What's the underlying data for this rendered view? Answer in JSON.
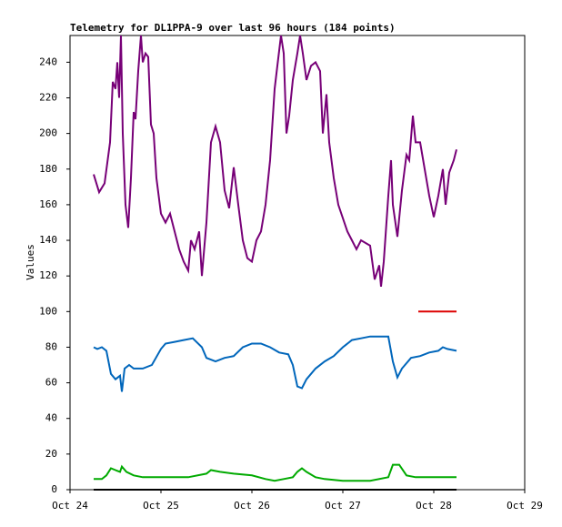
{
  "chart_data": {
    "type": "line",
    "title": "Telemetry for DL1PPA-9 over last 96 hours (184 points)",
    "y_label": "Values",
    "xlim": [
      24,
      29
    ],
    "xticks": [
      {
        "value": 24,
        "label": "Oct 24"
      },
      {
        "value": 25,
        "label": "Oct 25"
      },
      {
        "value": 26,
        "label": "Oct 26"
      },
      {
        "value": 27,
        "label": "Oct 27"
      },
      {
        "value": 28,
        "label": "Oct 28"
      },
      {
        "value": 29,
        "label": "Oct 29"
      }
    ],
    "ylim": [
      0,
      255
    ],
    "yticks": [
      0,
      20,
      40,
      60,
      80,
      100,
      120,
      140,
      160,
      180,
      200,
      220,
      240
    ],
    "grid": false,
    "series": [
      {
        "color": "#770077",
        "x": [
          24.26,
          24.32,
          24.38,
          24.44,
          24.47,
          24.5,
          24.52,
          24.54,
          24.56,
          24.58,
          24.61,
          24.64,
          24.67,
          24.7,
          24.72,
          24.75,
          24.78,
          24.8,
          24.83,
          24.86,
          24.89,
          24.92,
          24.95,
          25.0,
          25.05,
          25.1,
          25.15,
          25.2,
          25.25,
          25.3,
          25.33,
          25.37,
          25.42,
          25.45,
          25.5,
          25.55,
          25.6,
          25.65,
          25.7,
          25.75,
          25.8,
          25.85,
          25.9,
          25.95,
          26.0,
          26.05,
          26.1,
          26.15,
          26.2,
          26.25,
          26.28,
          26.32,
          26.35,
          26.38,
          26.41,
          26.45,
          26.5,
          26.53,
          26.56,
          26.6,
          26.65,
          26.7,
          26.75,
          26.78,
          26.82,
          26.85,
          26.9,
          26.95,
          27.05,
          27.1,
          27.15,
          27.2,
          27.3,
          27.35,
          27.4,
          27.42,
          27.45,
          27.5,
          27.53,
          27.55,
          27.6,
          27.65,
          27.7,
          27.73,
          27.77,
          27.8,
          27.85,
          27.9,
          27.95,
          28.0,
          28.05,
          28.1,
          28.13,
          28.17,
          28.22,
          28.25
        ],
        "values": [
          177,
          167,
          172,
          195,
          229,
          225,
          240,
          220,
          255,
          200,
          160,
          147,
          175,
          212,
          208,
          235,
          255,
          240,
          245,
          243,
          205,
          200,
          175,
          155,
          150,
          155,
          145,
          135,
          128,
          123,
          140,
          135,
          145,
          120,
          150,
          195,
          204,
          195,
          168,
          158,
          181,
          160,
          140,
          130,
          128,
          140,
          145,
          160,
          185,
          225,
          238,
          255,
          245,
          200,
          210,
          230,
          245,
          255,
          245,
          230,
          238,
          240,
          235,
          200,
          222,
          195,
          175,
          160,
          145,
          140,
          135,
          140,
          137,
          118,
          126,
          114,
          128,
          165,
          185,
          160,
          142,
          168,
          188,
          185,
          210,
          195,
          195,
          180,
          165,
          153,
          165,
          180,
          160,
          178,
          185,
          191
        ]
      },
      {
        "color": "#dd0000",
        "x": [
          27.83,
          28.25
        ],
        "values": [
          100,
          100
        ]
      },
      {
        "color": "#0066bb",
        "x": [
          24.26,
          24.3,
          24.35,
          24.4,
          24.45,
          24.5,
          24.55,
          24.57,
          24.6,
          24.65,
          24.7,
          24.8,
          24.9,
          25.0,
          25.05,
          25.15,
          25.25,
          25.35,
          25.45,
          25.5,
          25.6,
          25.7,
          25.8,
          25.9,
          26.0,
          26.1,
          26.2,
          26.3,
          26.4,
          26.45,
          26.5,
          26.55,
          26.6,
          26.7,
          26.8,
          26.9,
          27.0,
          27.1,
          27.2,
          27.3,
          27.4,
          27.5,
          27.55,
          27.6,
          27.65,
          27.75,
          27.85,
          27.95,
          28.05,
          28.1,
          28.15,
          28.25
        ],
        "values": [
          80,
          79,
          80,
          78,
          65,
          62,
          64,
          55,
          68,
          70,
          68,
          68,
          70,
          79,
          82,
          83,
          84,
          85,
          80,
          74,
          72,
          74,
          75,
          80,
          82,
          82,
          80,
          77,
          76,
          70,
          58,
          57,
          62,
          68,
          72,
          75,
          80,
          84,
          85,
          86,
          86,
          86,
          72,
          63,
          68,
          74,
          75,
          77,
          78,
          80,
          79,
          78
        ]
      },
      {
        "color": "#00aa00",
        "x": [
          24.26,
          24.35,
          24.4,
          24.45,
          24.5,
          24.55,
          24.57,
          24.62,
          24.7,
          24.8,
          25.0,
          25.3,
          25.5,
          25.55,
          25.65,
          25.8,
          26.0,
          26.15,
          26.25,
          26.35,
          26.45,
          26.5,
          26.55,
          26.6,
          26.7,
          26.8,
          27.0,
          27.3,
          27.5,
          27.55,
          27.62,
          27.7,
          27.8,
          28.25
        ],
        "values": [
          6,
          6,
          8,
          12,
          11,
          10,
          13,
          10,
          8,
          7,
          7,
          7,
          9,
          11,
          10,
          9,
          8,
          6,
          5,
          6,
          7,
          10,
          12,
          10,
          7,
          6,
          5,
          5,
          7,
          14,
          14,
          8,
          7,
          7
        ]
      },
      {
        "color": "#000000",
        "x": [
          24.26,
          28.25
        ],
        "values": [
          0,
          0
        ]
      }
    ]
  }
}
